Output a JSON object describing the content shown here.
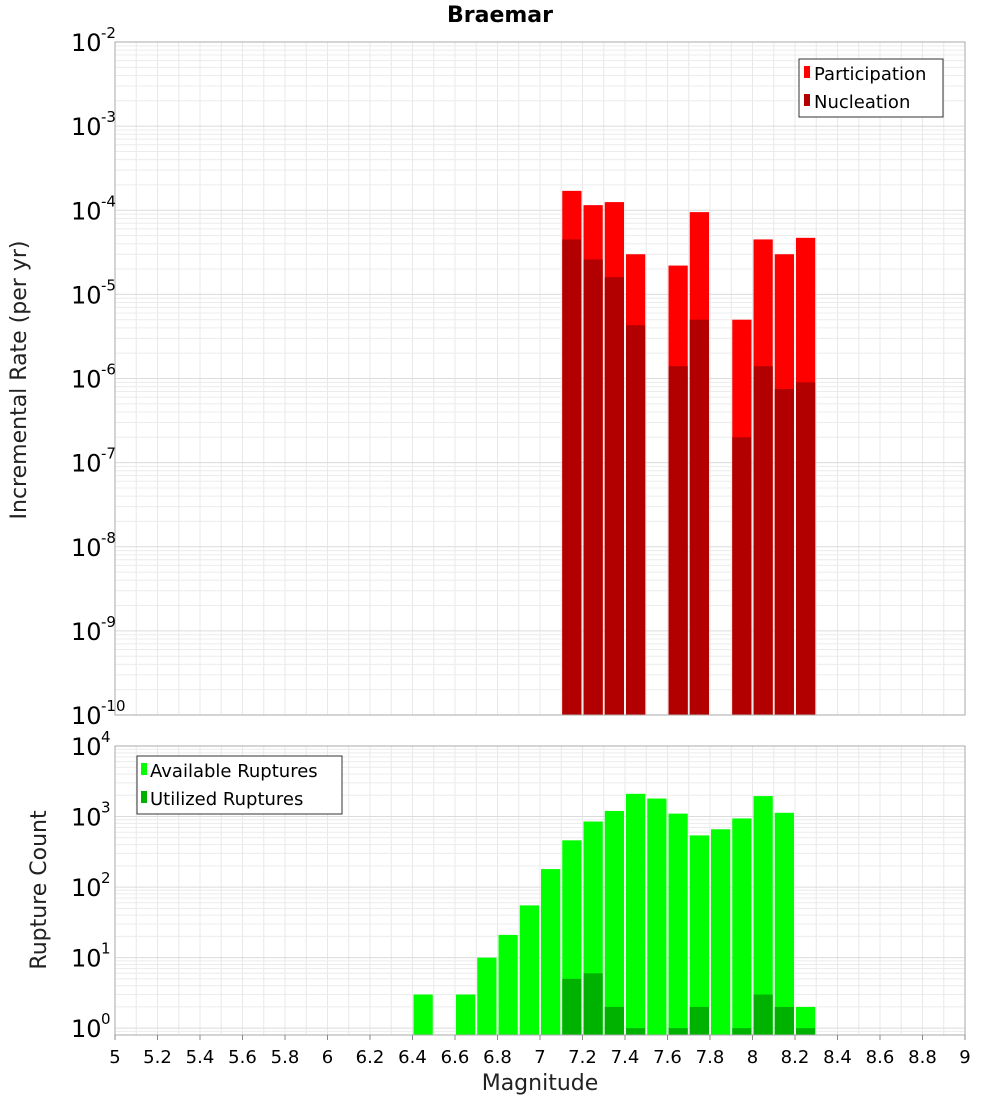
{
  "chart_data": [
    {
      "type": "bar",
      "title": "Braemar",
      "xlabel": "Magnitude",
      "ylabel": "Incremental Rate (per yr)",
      "yscale": "log",
      "ylim": [
        1e-10,
        0.01
      ],
      "xlim": [
        5,
        9
      ],
      "bin_width": 0.1,
      "legend": "top-right",
      "grid": true,
      "series": [
        {
          "name": "Participation",
          "color": "#ff0000",
          "x": [
            7.15,
            7.25,
            7.35,
            7.45,
            7.65,
            7.75,
            7.95,
            8.05,
            8.15,
            8.25
          ],
          "values": [
            0.00017,
            0.000115,
            0.000125,
            3e-05,
            2.2e-05,
            9.5e-05,
            5e-06,
            4.5e-05,
            3e-05,
            4.7e-05
          ]
        },
        {
          "name": "Nucleation",
          "color": "#b20000",
          "x": [
            7.15,
            7.25,
            7.35,
            7.45,
            7.65,
            7.75,
            7.95,
            8.05,
            8.15,
            8.25
          ],
          "values": [
            4.5e-05,
            2.6e-05,
            1.6e-05,
            4.3e-06,
            1.4e-06,
            5e-06,
            2e-07,
            1.4e-06,
            7.5e-07,
            9e-07
          ]
        }
      ]
    },
    {
      "type": "bar",
      "title": "",
      "xlabel": "Magnitude",
      "ylabel": "Rupture Count",
      "yscale": "log",
      "ylim": [
        0.8,
        10000
      ],
      "xlim": [
        5,
        9
      ],
      "bin_width": 0.1,
      "legend": "top-left",
      "grid": true,
      "series": [
        {
          "name": "Available Ruptures",
          "color": "#00ff00",
          "x": [
            6.45,
            6.65,
            6.75,
            6.85,
            6.95,
            7.05,
            7.15,
            7.25,
            7.35,
            7.45,
            7.55,
            7.65,
            7.75,
            7.85,
            7.95,
            8.05,
            8.15,
            8.25
          ],
          "values": [
            3,
            3,
            10,
            21,
            55,
            180,
            460,
            850,
            1200,
            2100,
            1800,
            1100,
            540,
            660,
            940,
            1950,
            1130,
            2
          ]
        },
        {
          "name": "Utilized Ruptures",
          "color": "#00b200",
          "x": [
            7.15,
            7.25,
            7.35,
            7.45,
            7.65,
            7.75,
            7.95,
            8.05,
            8.15,
            8.25
          ],
          "values": [
            5,
            6,
            2,
            1,
            1,
            2,
            1,
            3,
            2,
            1
          ]
        }
      ]
    }
  ],
  "x_ticks": [
    "5",
    "5.2",
    "5.4",
    "5.6",
    "5.8",
    "6",
    "6.2",
    "6.4",
    "6.6",
    "6.8",
    "7",
    "7.2",
    "7.4",
    "7.6",
    "7.8",
    "8",
    "8.2",
    "8.4",
    "8.6",
    "8.8",
    "9"
  ],
  "top_y_exponents": [
    "-10",
    "-9",
    "-8",
    "-7",
    "-6",
    "-5",
    "-4",
    "-3",
    "-2"
  ],
  "bottom_y_exponents": [
    "0",
    "1",
    "2",
    "3",
    "4"
  ],
  "y_tick_base": "10"
}
